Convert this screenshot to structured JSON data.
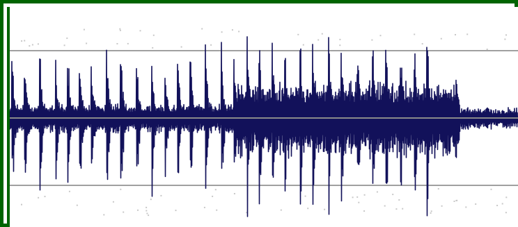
{
  "waveform_display": {
    "colors": {
      "frame": "#006400",
      "background": "#ffffff",
      "waveform": "#12115a",
      "guide_lines": "#a0a0a0",
      "center_line": "#8a8a8a",
      "speckle": "#c8c8c8"
    },
    "guide_lines": [
      "upper-quarter",
      "center",
      "lower-quarter"
    ]
  }
}
